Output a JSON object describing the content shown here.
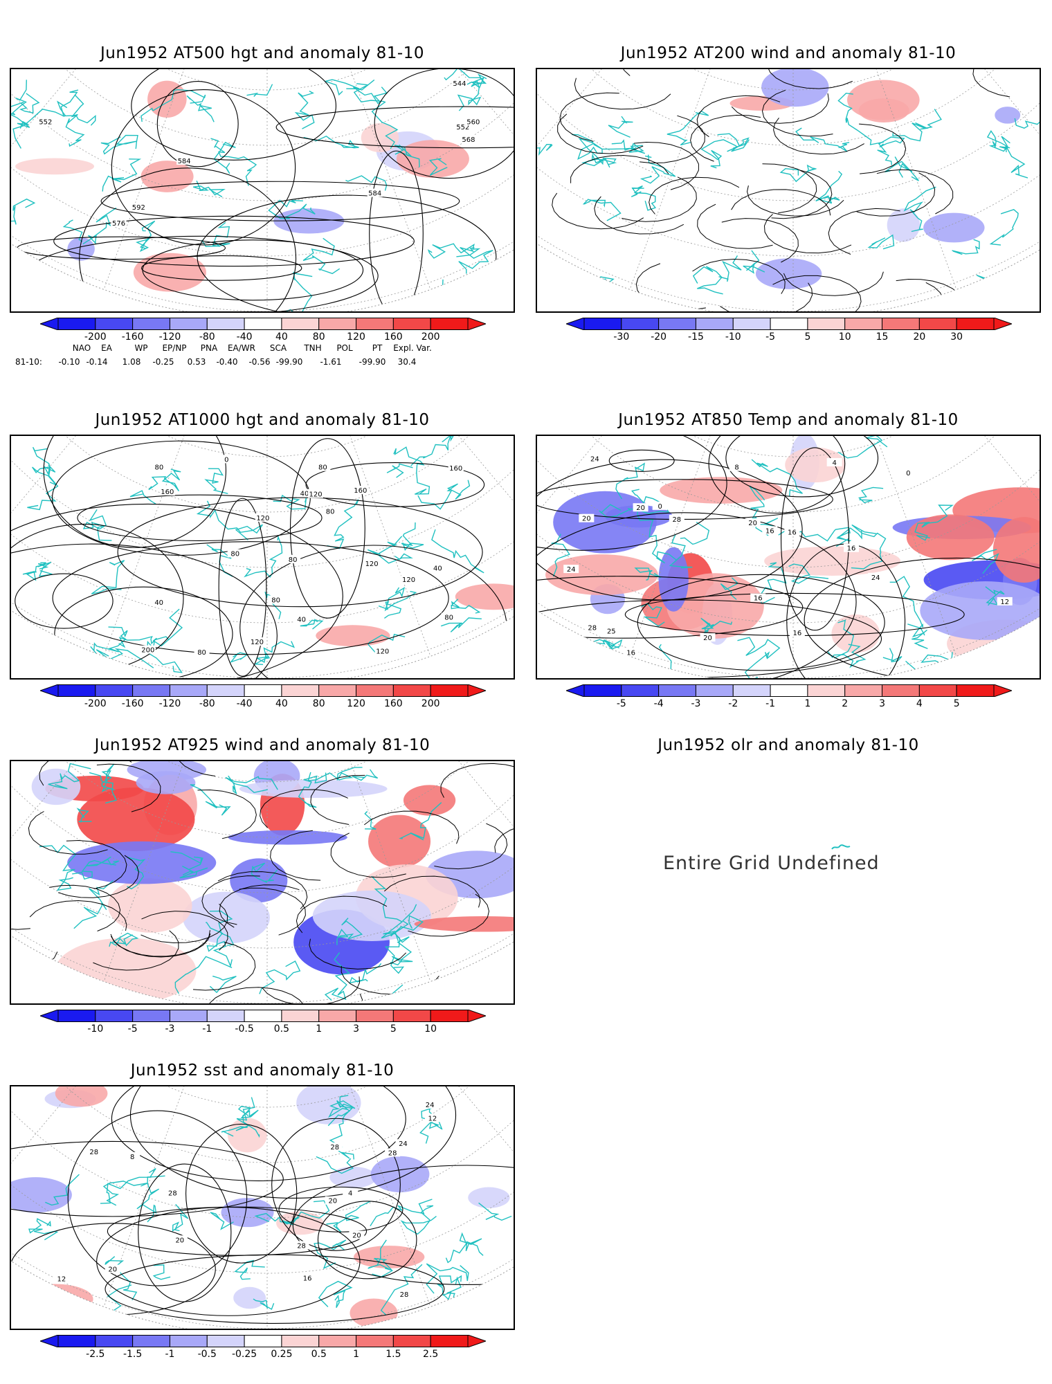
{
  "panels": [
    {
      "id": "hgt500",
      "title": "Jun1952 AT500 hgt and anomaly 81-10",
      "contour_labels": [
        "552",
        "544",
        "552",
        "560",
        "568",
        "576",
        "584",
        "584",
        "592"
      ],
      "colorbar": [
        "-200",
        "-160",
        "-120",
        "-80",
        "-40",
        "40",
        "80",
        "120",
        "160",
        "200"
      ]
    },
    {
      "id": "wind200",
      "title": "Jun1952 AT200 wind and anomaly 81-10",
      "colorbar": [
        "-30",
        "-20",
        "-15",
        "-10",
        "-5",
        "5",
        "10",
        "15",
        "20",
        "30"
      ]
    },
    {
      "id": "hgt1000",
      "title": "Jun1952 AT1000 hgt and anomaly 81-10",
      "contour_labels": [
        "160",
        "80",
        "80",
        "120",
        "80",
        "40",
        "80",
        "80",
        "120",
        "40",
        "160",
        "120",
        "0",
        "200",
        "160",
        "40",
        "80",
        "120",
        "120",
        "80",
        "40",
        "80",
        "120"
      ],
      "colorbar": [
        "-200",
        "-160",
        "-120",
        "-80",
        "-40",
        "40",
        "80",
        "120",
        "160",
        "200"
      ]
    },
    {
      "id": "temp850",
      "title": "Jun1952 AT850 Temp and anomaly 81-10",
      "contour_labels": [
        "20",
        "0",
        "0",
        "16",
        "4",
        "8",
        "16",
        "12",
        "16",
        "20",
        "24",
        "28",
        "28",
        "24",
        "20",
        "24",
        "20",
        "16",
        "16",
        "25",
        "16"
      ],
      "colorbar": [
        "-5",
        "-4",
        "-3",
        "-2",
        "-1",
        "1",
        "2",
        "3",
        "4",
        "5"
      ]
    },
    {
      "id": "wind925",
      "title": "Jun1952 AT925 wind and anomaly 81-10",
      "colorbar": [
        "-10",
        "-5",
        "-3",
        "-1",
        "-0.5",
        "0.5",
        "1",
        "3",
        "5",
        "10"
      ]
    },
    {
      "id": "olr",
      "title": "Jun1952 olr and anomaly 81-10",
      "message": "Entire Grid Undefined"
    },
    {
      "id": "sst",
      "title": "Jun1952 sst and anomaly 81-10",
      "contour_labels": [
        "24",
        "28",
        "28",
        "20",
        "4",
        "8",
        "12",
        "16",
        "12",
        "20",
        "20",
        "28",
        "28",
        "20",
        "24",
        "28",
        "28"
      ],
      "colorbar": [
        "-2.5",
        "-1.5",
        "-1",
        "-0.5",
        "-0.25",
        "0.25",
        "0.5",
        "1",
        "1.5",
        "2.5"
      ]
    }
  ],
  "teleconnections": {
    "headers": [
      "NAO",
      "EA",
      "WP",
      "EP/NP",
      "PNA",
      "EA/WR",
      "SCA",
      "TNH",
      "POL",
      "PT",
      "Expl. Var."
    ],
    "row_label": "81-10:",
    "values": [
      "-0.10",
      "-0.14",
      "1.08",
      "-0.25",
      "0.53",
      "-0.40",
      "-0.56",
      "-99.90",
      "-1.61",
      "-99.90",
      "30.4"
    ]
  },
  "colors": {
    "coast": "#20c0c0",
    "blue_scale": [
      "#1a1af0",
      "#4848f2",
      "#7878f4",
      "#a8a8f8",
      "#d4d4fb"
    ],
    "red_scale": [
      "#fbd4d4",
      "#f8a8a8",
      "#f47878",
      "#f24848",
      "#f01a1a"
    ]
  }
}
